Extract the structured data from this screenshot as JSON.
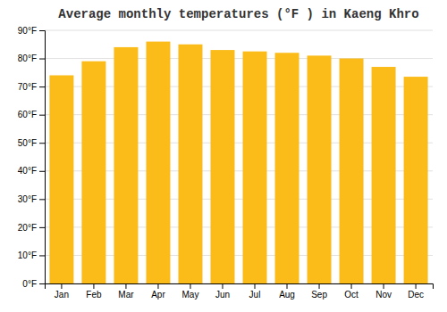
{
  "chart_data": {
    "type": "bar",
    "title": "Average monthly temperatures (°F ) in Kaeng Khro",
    "categories": [
      "Jan",
      "Feb",
      "Mar",
      "Apr",
      "May",
      "Jun",
      "Jul",
      "Aug",
      "Sep",
      "Oct",
      "Nov",
      "Dec"
    ],
    "values": [
      74,
      79,
      84,
      86,
      85,
      83,
      82.5,
      82,
      81,
      80,
      77,
      73.5
    ],
    "color": "#FBBC1A",
    "ylim": [
      0,
      90
    ],
    "yticks": [
      {
        "value": 0,
        "label": "0°F"
      },
      {
        "value": 10,
        "label": "10°F"
      },
      {
        "value": 20,
        "label": "20°F"
      },
      {
        "value": 30,
        "label": "30°F"
      },
      {
        "value": 40,
        "label": "40°F"
      },
      {
        "value": 50,
        "label": "50°F"
      },
      {
        "value": 60,
        "label": "60°F"
      },
      {
        "value": 70,
        "label": "70°F"
      },
      {
        "value": 80,
        "label": "80°F"
      },
      {
        "value": 90,
        "label": "90°F"
      }
    ],
    "grid": true
  }
}
